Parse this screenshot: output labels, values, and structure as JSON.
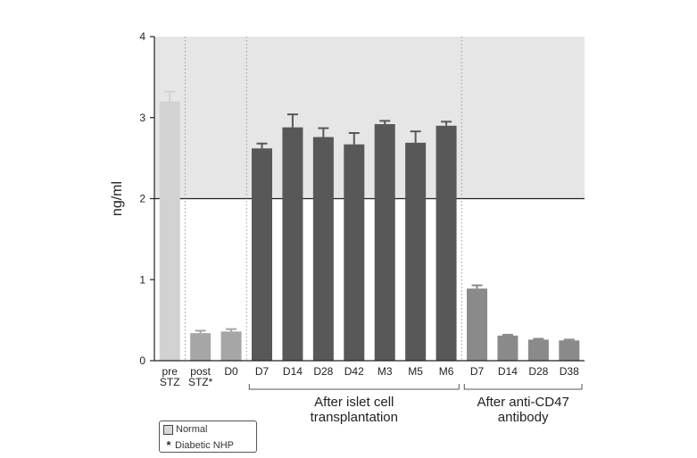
{
  "chart_data": {
    "type": "bar",
    "ylabel": "ng/ml",
    "ylim": [
      0,
      4
    ],
    "yticks": [
      "0",
      "1",
      "2",
      "3",
      "4"
    ],
    "threshold": 2,
    "normal_range": [
      2,
      4
    ],
    "categories": [
      {
        "label": [
          "pre",
          "STZ"
        ],
        "value": 3.2,
        "error": 0.12,
        "color": "#d2d2d2"
      },
      {
        "label": [
          "post",
          "STZ*"
        ],
        "value": 0.34,
        "error": 0.03,
        "color": "#a6a6a6"
      },
      {
        "label": [
          "D0"
        ],
        "value": 0.36,
        "error": 0.03,
        "color": "#a6a6a6"
      },
      {
        "label": [
          "D7"
        ],
        "value": 2.62,
        "error": 0.06,
        "color": "#585858"
      },
      {
        "label": [
          "D14"
        ],
        "value": 2.88,
        "error": 0.16,
        "color": "#585858"
      },
      {
        "label": [
          "D28"
        ],
        "value": 2.76,
        "error": 0.11,
        "color": "#585858"
      },
      {
        "label": [
          "D42"
        ],
        "value": 2.67,
        "error": 0.14,
        "color": "#585858"
      },
      {
        "label": [
          "M3"
        ],
        "value": 2.92,
        "error": 0.04,
        "color": "#585858"
      },
      {
        "label": [
          "M5"
        ],
        "value": 2.69,
        "error": 0.14,
        "color": "#585858"
      },
      {
        "label": [
          "M6"
        ],
        "value": 2.9,
        "error": 0.05,
        "color": "#585858"
      },
      {
        "label": [
          "D7"
        ],
        "value": 0.89,
        "error": 0.04,
        "color": "#8a8a8a"
      },
      {
        "label": [
          "D14"
        ],
        "value": 0.31,
        "error": 0.01,
        "color": "#8a8a8a"
      },
      {
        "label": [
          "D28"
        ],
        "value": 0.26,
        "error": 0.01,
        "color": "#8a8a8a"
      },
      {
        "label": [
          "D38"
        ],
        "value": 0.25,
        "error": 0.01,
        "color": "#8a8a8a"
      }
    ],
    "groups": [
      {
        "label": [
          "After islet cell",
          "transplantation"
        ],
        "from": 3,
        "to": 9
      },
      {
        "label": [
          "After anti-CD47",
          "antibody"
        ],
        "from": 10,
        "to": 13
      }
    ],
    "dividers_after": [
      0,
      2,
      9
    ]
  },
  "legend": {
    "normal": "Normal",
    "diabetic_symbol": "*",
    "diabetic": "Diabetic NHP"
  }
}
